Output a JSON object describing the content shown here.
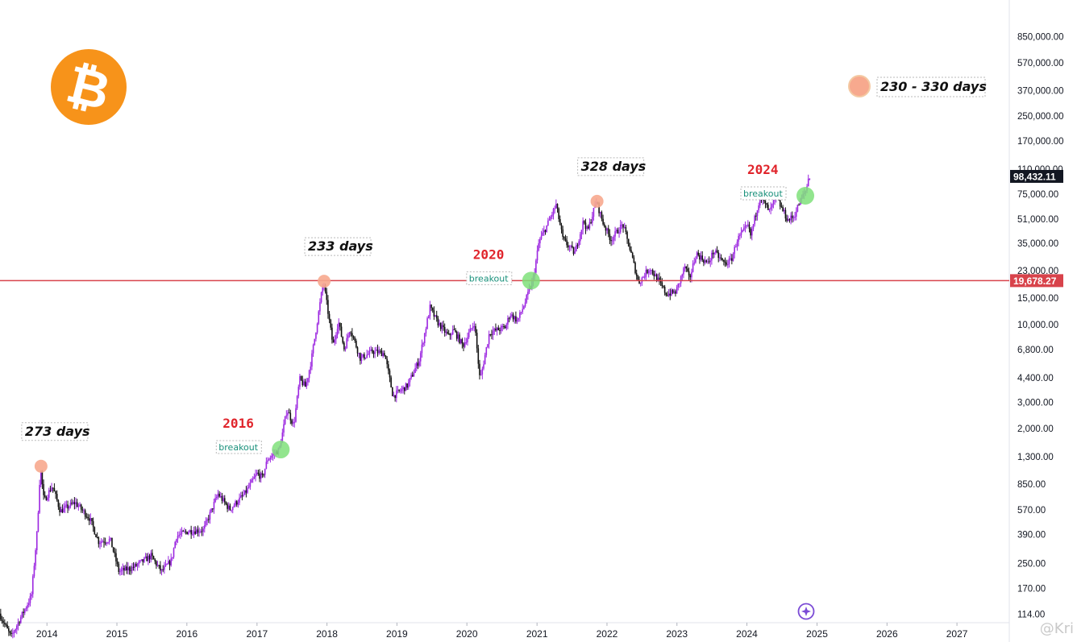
{
  "chart_data": {
    "type": "candlestick",
    "yscale": "log",
    "ylim": [
      100,
      1500000
    ],
    "xlim": [
      "2013-05-01",
      "2027-10-01"
    ],
    "x_ticks": [
      "2014",
      "2015",
      "2016",
      "2017",
      "2018",
      "2019",
      "2020",
      "2021",
      "2022",
      "2023",
      "2024",
      "2025",
      "2026",
      "2027"
    ],
    "y_ticks": [
      "850,000.00",
      "570,000.00",
      "370,000.00",
      "250,000.00",
      "170,000.00",
      "110,000.00",
      "75,000.00",
      "51,000.00",
      "35,000.00",
      "23,000.00",
      "15,000.00",
      "10,000.00",
      "6,800.00",
      "4,400.00",
      "3,000.00",
      "2,000.00",
      "1,300.00",
      "850.00",
      "570.00",
      "390.00",
      "250.00",
      "170.00",
      "114.00"
    ],
    "y_tick_values": [
      850000,
      570000,
      370000,
      250000,
      170000,
      110000,
      75000,
      51000,
      35000,
      23000,
      15000,
      10000,
      6800,
      4400,
      3000,
      2000,
      1300,
      850,
      570,
      390,
      250,
      170,
      114
    ],
    "colors": {
      "up": "#9c27e0",
      "down": "#111111",
      "hline": "#d8434b",
      "peak": "#f7a98e",
      "breakout": "#7fe07a",
      "year_label": "#e0242b",
      "breakout_text": "#18907a"
    },
    "horizontal_line": {
      "value": 19678.27,
      "label": "19,678.27"
    },
    "last_price": {
      "value": 98432.11,
      "label": "98,432.11"
    },
    "price_path": [
      [
        "2013-05-01",
        115
      ],
      [
        "2013-07-01",
        80
      ],
      [
        "2013-08-15",
        105
      ],
      [
        "2013-10-15",
        150
      ],
      [
        "2013-11-15",
        420
      ],
      [
        "2013-12-01",
        1120
      ],
      [
        "2013-12-20",
        650
      ],
      [
        "2014-02-01",
        830
      ],
      [
        "2014-03-15",
        560
      ],
      [
        "2014-06-01",
        640
      ],
      [
        "2014-08-15",
        500
      ],
      [
        "2014-10-01",
        350
      ],
      [
        "2014-12-01",
        360
      ],
      [
        "2015-01-15",
        220
      ],
      [
        "2015-04-01",
        235
      ],
      [
        "2015-07-01",
        280
      ],
      [
        "2015-08-25",
        220
      ],
      [
        "2015-10-15",
        260
      ],
      [
        "2015-11-10",
        380
      ],
      [
        "2016-01-10",
        410
      ],
      [
        "2016-04-01",
        420
      ],
      [
        "2016-06-15",
        730
      ],
      [
        "2016-08-15",
        575
      ],
      [
        "2016-11-01",
        730
      ],
      [
        "2017-01-05",
        1000
      ],
      [
        "2017-02-01",
        940
      ],
      [
        "2017-03-01",
        1250
      ],
      [
        "2017-05-01",
        1450
      ],
      [
        "2017-06-10",
        2700
      ],
      [
        "2017-07-15",
        2100
      ],
      [
        "2017-08-15",
        4300
      ],
      [
        "2017-09-15",
        3800
      ],
      [
        "2017-10-15",
        5800
      ],
      [
        "2017-12-17",
        19500
      ],
      [
        "2018-02-05",
        7200
      ],
      [
        "2018-03-05",
        10500
      ],
      [
        "2018-04-05",
        6800
      ],
      [
        "2018-05-05",
        9500
      ],
      [
        "2018-06-28",
        5900
      ],
      [
        "2018-09-01",
        6600
      ],
      [
        "2018-11-01",
        6400
      ],
      [
        "2018-12-15",
        3300
      ],
      [
        "2019-03-01",
        3900
      ],
      [
        "2019-05-01",
        5800
      ],
      [
        "2019-06-26",
        13000
      ],
      [
        "2019-08-01",
        10500
      ],
      [
        "2019-10-01",
        8300
      ],
      [
        "2019-10-26",
        9200
      ],
      [
        "2019-12-15",
        7200
      ],
      [
        "2020-02-13",
        10300
      ],
      [
        "2020-03-13",
        4200
      ],
      [
        "2020-05-01",
        8800
      ],
      [
        "2020-07-25",
        9600
      ],
      [
        "2020-08-15",
        11800
      ],
      [
        "2020-09-25",
        10600
      ],
      [
        "2020-11-01",
        13800
      ],
      [
        "2020-12-15",
        20000
      ],
      [
        "2021-01-15",
        36000
      ],
      [
        "2021-02-25",
        46000
      ],
      [
        "2021-04-14",
        63500
      ],
      [
        "2021-05-20",
        37000
      ],
      [
        "2021-07-20",
        30000
      ],
      [
        "2021-09-05",
        50000
      ],
      [
        "2021-09-25",
        42000
      ],
      [
        "2021-11-10",
        67000
      ],
      [
        "2021-12-15",
        48000
      ],
      [
        "2022-01-25",
        37000
      ],
      [
        "2022-03-28",
        47000
      ],
      [
        "2022-05-10",
        30000
      ],
      [
        "2022-06-18",
        19000
      ],
      [
        "2022-08-15",
        24000
      ],
      [
        "2022-10-01",
        19500
      ],
      [
        "2022-11-10",
        16000
      ],
      [
        "2022-12-30",
        16500
      ],
      [
        "2023-02-15",
        24500
      ],
      [
        "2023-03-10",
        20000
      ],
      [
        "2023-04-15",
        30000
      ],
      [
        "2023-06-15",
        25500
      ],
      [
        "2023-07-15",
        31000
      ],
      [
        "2023-09-11",
        25500
      ],
      [
        "2023-10-15",
        27000
      ],
      [
        "2023-11-15",
        37000
      ],
      [
        "2024-01-10",
        46000
      ],
      [
        "2024-01-23",
        39000
      ],
      [
        "2024-03-14",
        73000
      ],
      [
        "2024-05-01",
        57000
      ],
      [
        "2024-06-05",
        71000
      ],
      [
        "2024-08-05",
        50000
      ],
      [
        "2024-09-06",
        53000
      ],
      [
        "2024-10-01",
        64000
      ],
      [
        "2024-11-10",
        81000
      ],
      [
        "2024-11-22",
        98432
      ]
    ],
    "peak_markers": [
      {
        "date": "2013-12-01",
        "value": 1120,
        "label": "273 days"
      },
      {
        "date": "2017-12-17",
        "value": 19500,
        "label": "233 days"
      },
      {
        "date": "2021-11-10",
        "value": 67000,
        "label": "328 days"
      }
    ],
    "breakout_markers": [
      {
        "date": "2017-05-05",
        "value": 1450,
        "label": "breakout",
        "year": "2016"
      },
      {
        "date": "2020-12-01",
        "value": 19678,
        "label": "breakout",
        "year": "2020"
      },
      {
        "date": "2024-11-01",
        "value": 73000,
        "label": "breakout",
        "year": "2024"
      }
    ],
    "legend": [
      {
        "marker": "peak",
        "label": "230 - 330 days",
        "position": "top-right"
      }
    ]
  },
  "icons": {
    "logo": "bitcoin-logo-icon",
    "tool": "sparkle-target-icon"
  },
  "logo_glyph": "₿",
  "watermark": "@Kri"
}
